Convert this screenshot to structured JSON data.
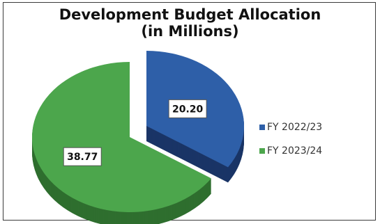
{
  "chart_data": {
    "type": "pie",
    "title_line1": "Development Budget Allocation",
    "title_line2": "(in Millions)",
    "categories": [
      "FY 2022/23",
      "FY 2023/24"
    ],
    "values": [
      20.2,
      38.77
    ],
    "value_labels": [
      "20.20",
      "38.77"
    ],
    "colors": [
      "#2e5fa8",
      "#4ca64c"
    ],
    "side_colors": [
      "#1a3566",
      "#2f6e2f"
    ],
    "exploded": [
      "FY 2022/23"
    ],
    "style": "3d",
    "legend": "right"
  }
}
